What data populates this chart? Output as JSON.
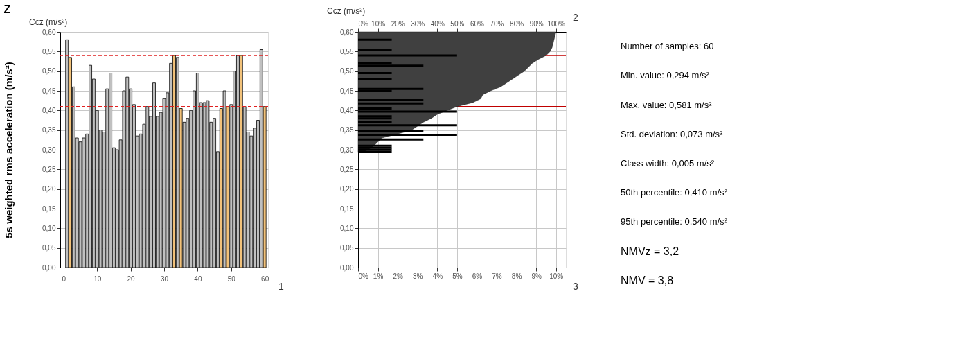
{
  "chart_data": [
    {
      "type": "bar",
      "title": "Z",
      "ylabel": "5s weighted rms acceleration (m/s²)",
      "annotations": [
        "Ccz (m/s²)",
        "1"
      ],
      "grid": "y",
      "x": [
        1,
        2,
        3,
        4,
        5,
        6,
        7,
        8,
        9,
        10,
        11,
        12,
        13,
        14,
        15,
        16,
        17,
        18,
        19,
        20,
        21,
        22,
        23,
        24,
        25,
        26,
        27,
        28,
        29,
        30,
        31,
        32,
        33,
        34,
        35,
        36,
        37,
        38,
        39,
        40,
        41,
        42,
        43,
        44,
        45,
        46,
        47,
        48,
        49,
        50,
        51,
        52,
        53,
        54,
        55,
        56,
        57,
        58,
        59,
        60
      ],
      "values": [
        0.58,
        0.535,
        0.46,
        0.33,
        0.32,
        0.33,
        0.34,
        0.515,
        0.48,
        0.4,
        0.35,
        0.345,
        0.455,
        0.495,
        0.305,
        0.3,
        0.325,
        0.45,
        0.485,
        0.455,
        0.415,
        0.335,
        0.34,
        0.365,
        0.41,
        0.385,
        0.47,
        0.385,
        0.395,
        0.43,
        0.445,
        0.52,
        0.54,
        0.535,
        0.405,
        0.37,
        0.38,
        0.4,
        0.45,
        0.495,
        0.42,
        0.42,
        0.425,
        0.37,
        0.38,
        0.295,
        0.405,
        0.45,
        0.41,
        0.415,
        0.5,
        0.54,
        0.54,
        0.41,
        0.345,
        0.335,
        0.355,
        0.375,
        0.555,
        0.41
      ],
      "colors": [
        "#c0c0c0",
        "#f2c27a",
        "#c0c0c0",
        "#c0c0c0",
        "#c0c0c0",
        "#c0c0c0",
        "#c0c0c0",
        "#c0c0c0",
        "#c0c0c0",
        "#c0c0c0",
        "#c0c0c0",
        "#c0c0c0",
        "#c0c0c0",
        "#c0c0c0",
        "#c0c0c0",
        "#c0c0c0",
        "#c0c0c0",
        "#c0c0c0",
        "#c0c0c0",
        "#c0c0c0",
        "#c0c0c0",
        "#c0c0c0",
        "#c0c0c0",
        "#c0c0c0",
        "#c0c0c0",
        "#c0c0c0",
        "#c0c0c0",
        "#c0c0c0",
        "#c0c0c0",
        "#c0c0c0",
        "#c0c0c0",
        "#c0c0c0",
        "#f2c27a",
        "#c0c0c0",
        "#f2c27a",
        "#c0c0c0",
        "#c0c0c0",
        "#c0c0c0",
        "#c0c0c0",
        "#c0c0c0",
        "#c0c0c0",
        "#c0c0c0",
        "#c0c0c0",
        "#c0c0c0",
        "#c0c0c0",
        "#c0c0c0",
        "#f2c27a",
        "#c0c0c0",
        "#f2c27a",
        "#c0c0c0",
        "#c0c0c0",
        "#c0c0c0",
        "#f2c27a",
        "#c0c0c0",
        "#c0c0c0",
        "#c0c0c0",
        "#c0c0c0",
        "#c0c0c0",
        "#c0c0c0",
        "#f2c27a"
      ],
      "xlim": [
        -1,
        61
      ],
      "xticks": [
        0,
        10,
        20,
        30,
        40,
        50,
        60
      ],
      "ylim": [
        0,
        0.6
      ],
      "yticks": [
        {
          "value": 0,
          "label": "0,00"
        },
        {
          "value": 0.05,
          "label": "0,05"
        },
        {
          "value": 0.1,
          "label": "0,10"
        },
        {
          "value": 0.15,
          "label": "0,15"
        },
        {
          "value": 0.2,
          "label": "0,20"
        },
        {
          "value": 0.25,
          "label": "0,25"
        },
        {
          "value": 0.3,
          "label": "0,30"
        },
        {
          "value": 0.35,
          "label": "0,35"
        },
        {
          "value": 0.4,
          "label": "0,40"
        },
        {
          "value": 0.45,
          "label": "0,45"
        },
        {
          "value": 0.5,
          "label": "0,50"
        },
        {
          "value": 0.55,
          "label": "0,55"
        },
        {
          "value": 0.6,
          "label": "0,60"
        }
      ],
      "ref_lines": [
        {
          "axis": "y",
          "value": 0.54,
          "color": "#e02020",
          "line_style": "dashed"
        },
        {
          "axis": "y",
          "value": 0.41,
          "color": "#e02020",
          "line_style": "dashed"
        }
      ]
    },
    {
      "type": "bar",
      "orientation": "horizontal",
      "annotations": [
        "Ccz (m/s²)",
        "2",
        "3"
      ],
      "grid": true,
      "ylim": [
        0,
        0.6
      ],
      "yticks": [
        {
          "value": 0,
          "label": "0,00"
        },
        {
          "value": 0.05,
          "label": "0,05"
        },
        {
          "value": 0.1,
          "label": "0,10"
        },
        {
          "value": 0.15,
          "label": "0,15"
        },
        {
          "value": 0.2,
          "label": "0,20"
        },
        {
          "value": 0.25,
          "label": "0,25"
        },
        {
          "value": 0.3,
          "label": "0,30"
        },
        {
          "value": 0.35,
          "label": "0,35"
        },
        {
          "value": 0.4,
          "label": "0,40"
        },
        {
          "value": 0.45,
          "label": "0,45"
        },
        {
          "value": 0.5,
          "label": "0,50"
        },
        {
          "value": 0.55,
          "label": "0,55"
        },
        {
          "value": 0.6,
          "label": "0,60"
        }
      ],
      "xlim": [
        0,
        10.5
      ],
      "xticks": [
        {
          "value": 0,
          "label": "0%"
        },
        {
          "value": 1,
          "label": "1%"
        },
        {
          "value": 2,
          "label": "2%"
        },
        {
          "value": 3,
          "label": "3%"
        },
        {
          "value": 4,
          "label": "4%"
        },
        {
          "value": 5,
          "label": "5%"
        },
        {
          "value": 6,
          "label": "6%"
        },
        {
          "value": 7,
          "label": "7%"
        },
        {
          "value": 8,
          "label": "8%"
        },
        {
          "value": 9,
          "label": "9%"
        },
        {
          "value": 10,
          "label": "10%"
        }
      ],
      "x2lim": [
        0,
        105
      ],
      "x2ticks": [
        {
          "value": 0,
          "label": "0%"
        },
        {
          "value": 10,
          "label": "10%"
        },
        {
          "value": 20,
          "label": "20%"
        },
        {
          "value": 30,
          "label": "30%"
        },
        {
          "value": 40,
          "label": "40%"
        },
        {
          "value": 50,
          "label": "50%"
        },
        {
          "value": 60,
          "label": "60%"
        },
        {
          "value": 70,
          "label": "70%"
        },
        {
          "value": 80,
          "label": "80%"
        },
        {
          "value": 90,
          "label": "90%"
        },
        {
          "value": 100,
          "label": "100%"
        }
      ],
      "ref_lines": [
        {
          "axis": "y",
          "value": 0.54,
          "color": "#c00000"
        },
        {
          "axis": "y",
          "value": 0.41,
          "color": "#c00000"
        }
      ],
      "series": [
        {
          "type": "area",
          "axis": "x2",
          "color": "#404040",
          "x": [
            0.294,
            0.3,
            0.31,
            0.33,
            0.34,
            0.35,
            0.36,
            0.37,
            0.38,
            0.39,
            0.4,
            0.41,
            0.42,
            0.43,
            0.44,
            0.45,
            0.46,
            0.47,
            0.48,
            0.49,
            0.5,
            0.51,
            0.52,
            0.53,
            0.54,
            0.55,
            0.56,
            0.58,
            0.6
          ],
          "values": [
            2,
            5,
            8,
            12,
            20,
            27,
            30,
            33,
            37,
            40,
            45,
            50,
            58,
            62,
            63,
            67,
            72,
            75,
            78,
            81,
            84,
            86,
            88,
            91,
            95,
            97,
            98,
            99,
            100
          ]
        },
        {
          "type": "bar",
          "color": "#000000",
          "x": [
            0.295,
            0.3,
            0.305,
            0.31,
            0.326,
            0.338,
            0.347,
            0.362,
            0.37,
            0.38,
            0.385,
            0.397,
            0.405,
            0.418,
            0.426,
            0.45,
            0.455,
            0.48,
            0.495,
            0.514,
            0.52,
            0.54,
            0.555,
            0.58
          ],
          "values": [
            1.7,
            1.7,
            1.7,
            1.7,
            3.3,
            5,
            3.3,
            5,
            1.7,
            1.7,
            1.7,
            5,
            1.7,
            3.3,
            3.3,
            1.7,
            3.3,
            1.7,
            1.7,
            3.3,
            1.7,
            5,
            1.7,
            1.7
          ]
        }
      ]
    },
    {
      "type": "other",
      "annotations": [
        "Number of samples: 60",
        "Min. value: 0,294 m/s²",
        "Max. value: 0,581 m/s²",
        "Std. deviation: 0,073 m/s²",
        "Class width: 0,005 m/s²",
        "50th percentile: 0,410 m/s²",
        "95th percentile: 0,540 m/s²",
        "NMVz = 3,2",
        "NMV = 3,8"
      ]
    }
  ]
}
